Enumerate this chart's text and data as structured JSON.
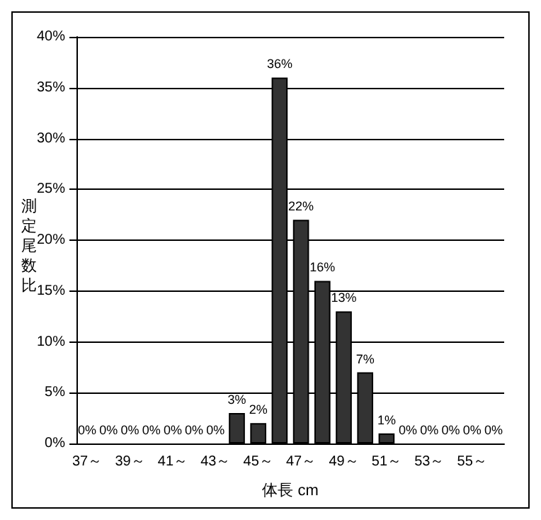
{
  "chart_data": {
    "type": "bar",
    "xlabel": "体長 cm",
    "ylabel": "測定尾数比",
    "categories": [
      "37～",
      null,
      "39～",
      null,
      "41～",
      null,
      "43～",
      null,
      "45～",
      null,
      "47～",
      null,
      "49～",
      null,
      "51～",
      null,
      "53～",
      null,
      "55～",
      null
    ],
    "values": [
      0,
      0,
      0,
      0,
      0,
      0,
      0,
      3,
      2,
      36,
      22,
      16,
      13,
      7,
      1,
      0,
      0,
      0,
      0,
      0
    ],
    "value_labels": [
      "0%",
      "0%",
      "0%",
      "0%",
      "0%",
      "0%",
      "0%",
      "3%",
      "2%",
      "36%",
      "22%",
      "16%",
      "13%",
      "7%",
      "1%",
      "0%",
      "0%",
      "0%",
      "0%",
      "0%"
    ],
    "color": "#333333",
    "ylim": [
      0,
      40
    ],
    "yticks": [
      {
        "value": 0,
        "label": "0%"
      },
      {
        "value": 5,
        "label": "5%"
      },
      {
        "value": 10,
        "label": "10%"
      },
      {
        "value": 15,
        "label": "15%"
      },
      {
        "value": 20,
        "label": "20%"
      },
      {
        "value": 25,
        "label": "25%"
      },
      {
        "value": 30,
        "label": "30%"
      },
      {
        "value": 35,
        "label": "35%"
      },
      {
        "value": 40,
        "label": "40%"
      }
    ],
    "grid": "y"
  }
}
